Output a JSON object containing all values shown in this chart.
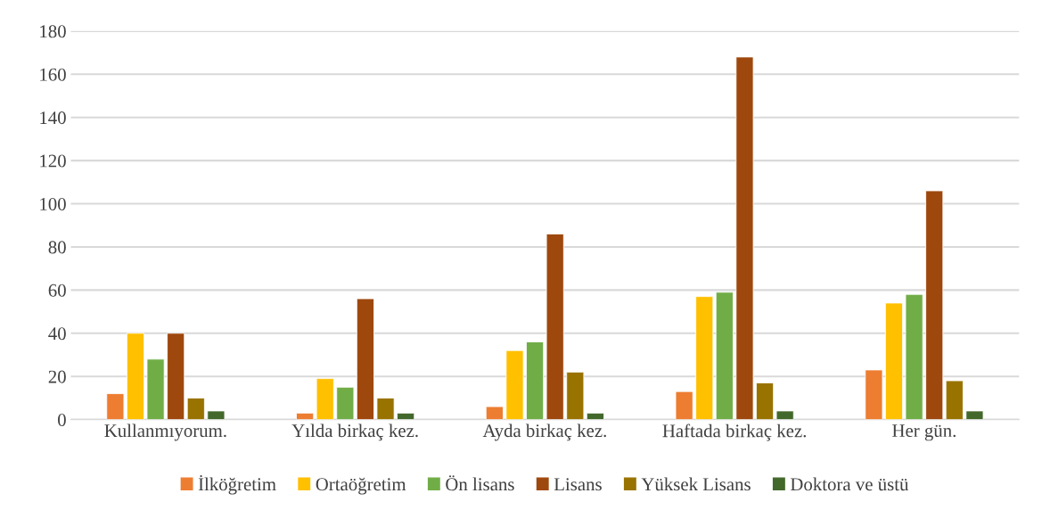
{
  "chart_data": {
    "type": "bar",
    "categories": [
      "Kullanmıyorum.",
      "Yılda birkaç kez.",
      "Ayda birkaç kez.",
      "Haftada birkaç kez.",
      "Her gün."
    ],
    "series": [
      {
        "name": "İlköğretim",
        "color": "#ed7d31",
        "values": [
          12,
          3,
          6,
          13,
          23
        ]
      },
      {
        "name": "Ortaöğretim",
        "color": "#ffc000",
        "values": [
          40,
          19,
          32,
          57,
          54
        ]
      },
      {
        "name": "Ön lisans",
        "color": "#70ad47",
        "values": [
          28,
          15,
          36,
          59,
          58
        ]
      },
      {
        "name": "Lisans",
        "color": "#9e480e",
        "values": [
          40,
          56,
          86,
          168,
          106
        ]
      },
      {
        "name": "Yüksek Lisans",
        "color": "#997300",
        "values": [
          10,
          10,
          22,
          17,
          18
        ]
      },
      {
        "name": "Doktora ve üstü",
        "color": "#43682b",
        "values": [
          4,
          3,
          3,
          4,
          4
        ]
      }
    ],
    "ylim": [
      0,
      180
    ],
    "yticks": [
      0,
      20,
      40,
      60,
      80,
      100,
      120,
      140,
      160,
      180
    ],
    "grid": "y",
    "legend": "bottom"
  }
}
